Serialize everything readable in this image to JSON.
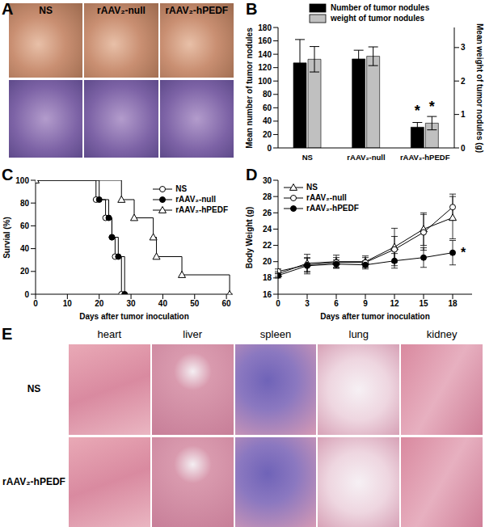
{
  "images": [
    {
      "panel": "A",
      "columns": [
        "NS",
        "rAAV₂-null",
        "rAAV₂-hPEDF"
      ]
    },
    {
      "panel": "E",
      "columns": [
        "heart",
        "liver",
        "spleen",
        "lung",
        "kidney"
      ],
      "rows": [
        "NS",
        "rAAV₂-hPEDF"
      ]
    }
  ],
  "chart_data": [
    {
      "panel": "B",
      "type": "bar",
      "categories": [
        "NS",
        "rAAV₂-null",
        "rAAV₂-hPEDF"
      ],
      "y_label": "Mean number of tumor nodules",
      "y2_label": "Mean weight of tumor nodules (g)",
      "ylim": [
        0,
        180
      ],
      "yticks": [
        0,
        20,
        40,
        60,
        80,
        100,
        120,
        140,
        160,
        180
      ],
      "y2lim": [
        0,
        3.6
      ],
      "y2ticks": [
        0,
        1,
        2,
        3
      ],
      "legend": "top",
      "series": [
        {
          "name": "Number of tumor nodules",
          "color": "#000000",
          "values": [
            127,
            133,
            31
          ],
          "error": [
            35,
            13,
            7
          ],
          "annotations": [
            null,
            null,
            "*"
          ]
        },
        {
          "name": "weight of tumor nodules",
          "color": "#c0c0c0",
          "axis": "y2",
          "values": [
            2.65,
            2.74,
            0.74
          ],
          "error": [
            0.38,
            0.28,
            0.2
          ],
          "annotations": [
            null,
            null,
            "*"
          ]
        }
      ]
    },
    {
      "panel": "C",
      "type": "line",
      "x_label": "Days after tumor inoculation",
      "y_label": "Survial (%)",
      "xlim": [
        0,
        62
      ],
      "xticks": [
        0,
        10,
        20,
        30,
        40,
        50,
        60
      ],
      "ylim": [
        0,
        100
      ],
      "yticks": [
        0,
        20,
        40,
        60,
        80,
        100
      ],
      "legend": "upper right",
      "line_style": "step",
      "series": [
        {
          "name": "NS",
          "color": "#000000",
          "marker": "open_circle",
          "x": [
            0,
            19,
            22,
            24,
            25,
            27
          ],
          "values": [
            100,
            83,
            67,
            50,
            33,
            0
          ]
        },
        {
          "name": "rAAV₂-null",
          "color": "#000000",
          "marker": "filled_circle",
          "x": [
            0,
            20,
            23,
            24,
            26,
            28
          ],
          "values": [
            100,
            83,
            67,
            50,
            33,
            0
          ]
        },
        {
          "name": "rAAV₂-hPEDF",
          "color": "#000000",
          "marker": "open_triangle",
          "x": [
            0,
            27,
            31,
            37,
            38,
            46,
            61
          ],
          "values": [
            100,
            83,
            67,
            50,
            33,
            17,
            0
          ]
        }
      ]
    },
    {
      "panel": "D",
      "type": "line",
      "x_label": "Days after tumor inoculation",
      "y_label": "Body Weight (g)",
      "x": [
        0,
        3,
        6,
        9,
        12,
        15,
        18
      ],
      "xlim": [
        0,
        20
      ],
      "xticks": [
        0,
        3,
        6,
        9,
        12,
        15,
        18
      ],
      "ylim": [
        16,
        30
      ],
      "yticks": [
        16,
        18,
        20,
        22,
        24,
        26,
        28,
        30
      ],
      "legend": "upper left",
      "series": [
        {
          "name": "NS",
          "color": "#000000",
          "marker": "open_triangle",
          "values": [
            18.5,
            19.8,
            20,
            20,
            21.8,
            24,
            25.4
          ],
          "error": [
            0.3,
            1.1,
            0.8,
            0.7,
            2.3,
            2,
            2.6
          ],
          "annotations": [
            null,
            null,
            null,
            null,
            null,
            null,
            null
          ]
        },
        {
          "name": "rAAV₂-null",
          "color": "#000000",
          "marker": "open_circle",
          "values": [
            18.8,
            19.6,
            19.9,
            19.9,
            21.5,
            23.6,
            26.7
          ],
          "error": [
            0.3,
            0.8,
            0.6,
            0.6,
            1.6,
            2.2,
            1.6
          ],
          "annotations": [
            null,
            null,
            null,
            null,
            null,
            null,
            null
          ]
        },
        {
          "name": "rAAV₂-hPEDF",
          "color": "#000000",
          "marker": "filled_circle",
          "values": [
            18.3,
            19.5,
            19.7,
            19.6,
            20.1,
            20.5,
            21.1
          ],
          "error": [
            0.3,
            1,
            0.5,
            0.5,
            0.9,
            1.2,
            1.5
          ],
          "annotations": [
            null,
            null,
            null,
            null,
            null,
            null,
            "*"
          ]
        }
      ]
    }
  ]
}
